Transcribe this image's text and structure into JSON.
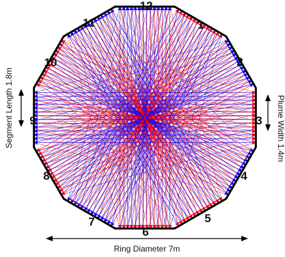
{
  "segments": [
    "1",
    "2",
    "3",
    "4",
    "5",
    "6",
    "7",
    "8",
    "9",
    "10",
    "11",
    "12"
  ],
  "dimensions": {
    "ring_diameter": "Ring Diameter 7m",
    "segment_length": "Segment Length 1.8m",
    "plume_width": "Plume Width 1.4m"
  },
  "colors": {
    "outline": "#000000",
    "beam_red": "#ff0000",
    "beam_blue": "#0000ff"
  }
}
